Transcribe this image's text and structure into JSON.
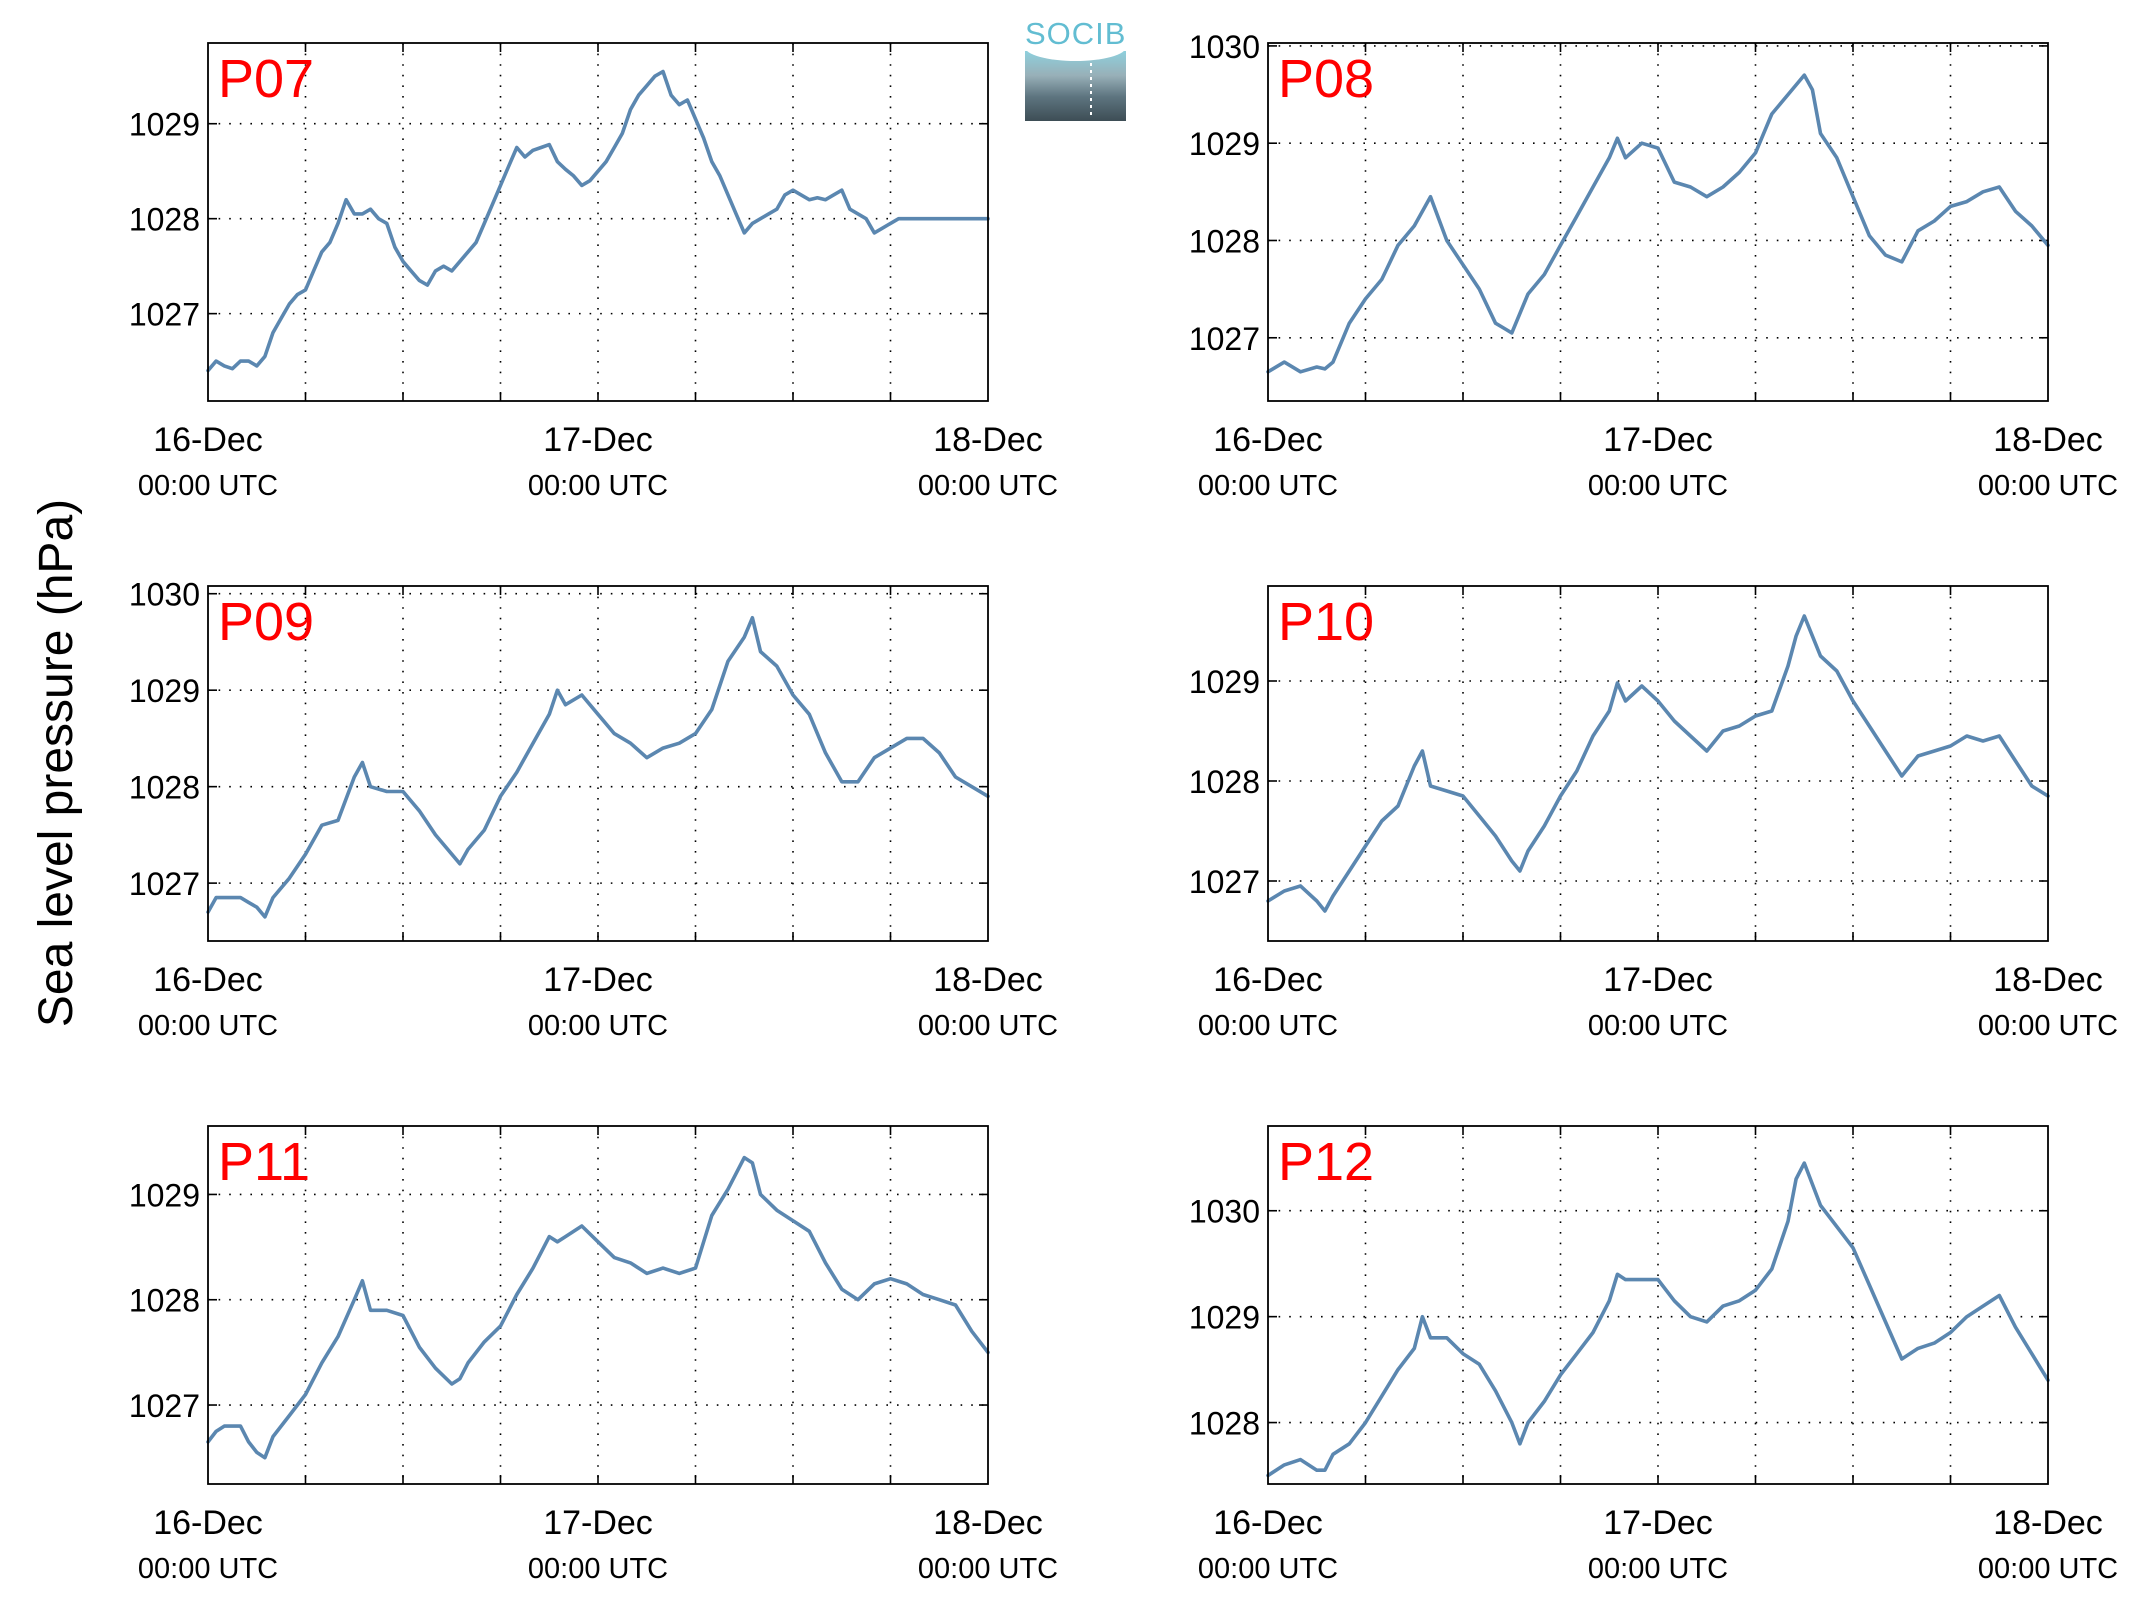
{
  "figure": {
    "ylabel": "Sea level pressure (hPa)",
    "logo_text": "SOCIB",
    "line_color": "#5b87b0",
    "station_label_color": "#ff0000"
  },
  "chart_data": [
    {
      "type": "line",
      "title": "P07",
      "xlabel": "",
      "ylabel": "",
      "x_tick_labels": [
        {
          "date": "16-Dec",
          "time": "00:00 UTC"
        },
        {
          "date": "17-Dec",
          "time": "00:00 UTC"
        },
        {
          "date": "18-Dec",
          "time": "00:00 UTC"
        }
      ],
      "xlim_hours": [
        0,
        48
      ],
      "x_grid_step_hours": 6,
      "ylim": [
        1026.08,
        1029.85
      ],
      "y_ticks": [
        1027,
        1028,
        1029
      ],
      "grid": "dotted",
      "series": [
        {
          "x_hours": [
            0,
            0.5,
            1,
            1.5,
            2,
            2.5,
            3,
            3.5,
            4,
            4.5,
            5,
            5.5,
            6,
            6.5,
            7,
            7.5,
            8,
            8.5,
            9,
            9.5,
            10,
            10.5,
            11,
            11.5,
            12,
            12.5,
            13,
            13.5,
            14,
            14.5,
            15,
            15.5,
            16,
            16.5,
            17,
            17.5,
            18,
            18.5,
            19,
            19.5,
            20,
            20.5,
            21,
            21.5,
            22,
            22.5,
            23,
            23.5,
            24,
            24.5,
            25,
            25.5,
            26,
            26.5,
            27,
            27.5,
            28,
            28.5,
            29,
            29.5,
            30,
            30.5,
            31,
            31.5,
            32,
            32.5,
            33,
            33.5,
            34,
            34.5,
            35,
            35.5,
            36,
            36.5,
            37,
            37.5,
            38,
            38.5,
            39,
            39.5,
            40,
            40.5,
            41,
            41.5,
            42,
            42.5,
            43,
            43.5,
            44,
            44.5,
            45,
            45.5,
            46,
            46.5,
            47,
            47.5,
            48
          ],
          "values": [
            1026.4,
            1026.5,
            1026.45,
            1026.42,
            1026.5,
            1026.5,
            1026.45,
            1026.55,
            1026.8,
            1026.95,
            1027.1,
            1027.2,
            1027.25,
            1027.45,
            1027.65,
            1027.75,
            1027.95,
            1028.2,
            1028.05,
            1028.05,
            1028.1,
            1028.0,
            1027.95,
            1027.7,
            1027.55,
            1027.45,
            1027.35,
            1027.3,
            1027.45,
            1027.5,
            1027.45,
            1027.55,
            1027.65,
            1027.75,
            1027.95,
            1028.15,
            1028.35,
            1028.55,
            1028.75,
            1028.65,
            1028.72,
            1028.75,
            1028.78,
            1028.6,
            1028.52,
            1028.45,
            1028.35,
            1028.4,
            1028.5,
            1028.6,
            1028.75,
            1028.9,
            1029.15,
            1029.3,
            1029.4,
            1029.5,
            1029.55,
            1029.3,
            1029.2,
            1029.25,
            1029.05,
            1028.85,
            1028.6,
            1028.45,
            1028.25,
            1028.05,
            1027.85,
            1027.95,
            1028.0,
            1028.05,
            1028.1,
            1028.25,
            1028.3,
            1028.25,
            1028.2,
            1028.22,
            1028.2,
            1028.25,
            1028.3,
            1028.1,
            1028.05,
            1028.0,
            1027.85,
            1027.9,
            1027.95,
            1028.0,
            1028.0,
            1028.0,
            1028.0,
            1028.0,
            1028.0,
            1028.0,
            1028.0,
            1028.0,
            1028.0,
            1028.0,
            1028.0
          ]
        }
      ]
    },
    {
      "type": "line",
      "title": "P08",
      "xlabel": "",
      "ylabel": "",
      "x_tick_labels": [
        {
          "date": "16-Dec",
          "time": "00:00 UTC"
        },
        {
          "date": "17-Dec",
          "time": "00:00 UTC"
        },
        {
          "date": "18-Dec",
          "time": "00:00 UTC"
        }
      ],
      "xlim_hours": [
        0,
        48
      ],
      "x_grid_step_hours": 6,
      "ylim": [
        1026.35,
        1030.03
      ],
      "y_ticks": [
        1027,
        1028,
        1029,
        1030
      ],
      "grid": "dotted",
      "series": [
        {
          "x_hours": [
            0,
            1,
            2,
            3,
            3.5,
            4,
            5,
            6,
            7,
            8,
            9,
            10,
            11,
            12,
            13,
            14,
            14.5,
            15,
            16,
            17,
            18,
            19,
            20,
            21,
            21.5,
            22,
            23,
            24,
            25,
            26,
            27,
            28,
            29,
            30,
            31,
            32,
            33,
            33.5,
            34,
            35,
            36,
            37,
            38,
            39,
            40,
            41,
            42,
            43,
            44,
            45,
            46,
            47,
            48
          ],
          "values": [
            1026.65,
            1026.75,
            1026.65,
            1026.7,
            1026.68,
            1026.75,
            1027.15,
            1027.4,
            1027.6,
            1027.95,
            1028.15,
            1028.45,
            1028.0,
            1027.75,
            1027.5,
            1027.15,
            1027.1,
            1027.05,
            1027.45,
            1027.65,
            1027.95,
            1028.25,
            1028.55,
            1028.85,
            1029.05,
            1028.85,
            1029.0,
            1028.95,
            1028.6,
            1028.55,
            1028.45,
            1028.55,
            1028.7,
            1028.9,
            1029.3,
            1029.5,
            1029.7,
            1029.55,
            1029.1,
            1028.85,
            1028.45,
            1028.05,
            1027.85,
            1027.78,
            1028.1,
            1028.2,
            1028.35,
            1028.4,
            1028.5,
            1028.55,
            1028.3,
            1028.15,
            1027.95
          ]
        }
      ]
    },
    {
      "type": "line",
      "title": "P09",
      "xlabel": "",
      "ylabel": "",
      "x_tick_labels": [
        {
          "date": "16-Dec",
          "time": "00:00 UTC"
        },
        {
          "date": "17-Dec",
          "time": "00:00 UTC"
        },
        {
          "date": "18-Dec",
          "time": "00:00 UTC"
        }
      ],
      "xlim_hours": [
        0,
        48
      ],
      "x_grid_step_hours": 6,
      "ylim": [
        1026.4,
        1030.08
      ],
      "y_ticks": [
        1027,
        1028,
        1029,
        1030
      ],
      "grid": "dotted",
      "series": [
        {
          "x_hours": [
            0,
            0.5,
            1,
            2,
            2.5,
            3,
            3.5,
            4,
            5,
            6,
            7,
            8,
            9,
            9.5,
            10,
            11,
            12,
            13,
            14,
            15,
            15.5,
            16,
            17,
            18,
            19,
            20,
            21,
            21.5,
            22,
            23,
            24,
            25,
            26,
            27,
            28,
            29,
            30,
            31,
            32,
            33,
            33.5,
            34,
            35,
            36,
            37,
            38,
            39,
            40,
            41,
            42,
            43,
            44,
            45,
            46,
            47,
            48
          ],
          "values": [
            1026.7,
            1026.85,
            1026.85,
            1026.85,
            1026.8,
            1026.75,
            1026.65,
            1026.85,
            1027.05,
            1027.3,
            1027.6,
            1027.65,
            1028.1,
            1028.25,
            1028.0,
            1027.95,
            1027.95,
            1027.75,
            1027.5,
            1027.3,
            1027.2,
            1027.35,
            1027.55,
            1027.9,
            1028.15,
            1028.45,
            1028.75,
            1029.0,
            1028.85,
            1028.95,
            1028.75,
            1028.55,
            1028.45,
            1028.3,
            1028.4,
            1028.45,
            1028.55,
            1028.8,
            1029.3,
            1029.55,
            1029.75,
            1029.4,
            1029.25,
            1028.95,
            1028.75,
            1028.35,
            1028.05,
            1028.05,
            1028.3,
            1028.4,
            1028.5,
            1028.5,
            1028.35,
            1028.1,
            1028.0,
            1027.9
          ]
        }
      ]
    },
    {
      "type": "line",
      "title": "P10",
      "xlabel": "",
      "ylabel": "",
      "x_tick_labels": [
        {
          "date": "16-Dec",
          "time": "00:00 UTC"
        },
        {
          "date": "17-Dec",
          "time": "00:00 UTC"
        },
        {
          "date": "18-Dec",
          "time": "00:00 UTC"
        }
      ],
      "xlim_hours": [
        0,
        48
      ],
      "x_grid_step_hours": 6,
      "ylim": [
        1026.4,
        1029.95
      ],
      "y_ticks": [
        1027,
        1028,
        1029
      ],
      "grid": "dotted",
      "series": [
        {
          "x_hours": [
            0,
            1,
            2,
            3,
            3.5,
            4,
            5,
            6,
            7,
            8,
            9,
            9.5,
            10,
            11,
            12,
            13,
            14,
            15,
            15.5,
            16,
            17,
            18,
            19,
            20,
            21,
            21.5,
            22,
            23,
            24,
            25,
            26,
            27,
            28,
            29,
            30,
            31,
            32,
            32.5,
            33,
            34,
            35,
            36,
            37,
            38,
            39,
            40,
            41,
            42,
            43,
            44,
            45,
            46,
            47,
            48
          ],
          "values": [
            1026.8,
            1026.9,
            1026.95,
            1026.8,
            1026.7,
            1026.85,
            1027.1,
            1027.35,
            1027.6,
            1027.75,
            1028.15,
            1028.3,
            1027.95,
            1027.9,
            1027.85,
            1027.65,
            1027.45,
            1027.2,
            1027.1,
            1027.3,
            1027.55,
            1027.85,
            1028.1,
            1028.45,
            1028.7,
            1028.98,
            1028.8,
            1028.95,
            1028.8,
            1028.6,
            1028.45,
            1028.3,
            1028.5,
            1028.55,
            1028.65,
            1028.7,
            1029.15,
            1029.45,
            1029.65,
            1029.25,
            1029.1,
            1028.8,
            1028.55,
            1028.3,
            1028.05,
            1028.25,
            1028.3,
            1028.35,
            1028.45,
            1028.4,
            1028.45,
            1028.2,
            1027.95,
            1027.85
          ]
        }
      ]
    },
    {
      "type": "line",
      "title": "P11",
      "xlabel": "",
      "ylabel": "",
      "x_tick_labels": [
        {
          "date": "16-Dec",
          "time": "00:00 UTC"
        },
        {
          "date": "17-Dec",
          "time": "00:00 UTC"
        },
        {
          "date": "18-Dec",
          "time": "00:00 UTC"
        }
      ],
      "xlim_hours": [
        0,
        48
      ],
      "x_grid_step_hours": 6,
      "ylim": [
        1026.25,
        1029.65
      ],
      "y_ticks": [
        1027,
        1028,
        1029
      ],
      "grid": "dotted",
      "series": [
        {
          "x_hours": [
            0,
            0.5,
            1,
            2,
            2.5,
            3,
            3.5,
            4,
            5,
            6,
            7,
            8,
            9,
            9.5,
            10,
            11,
            12,
            13,
            14,
            15,
            15.5,
            16,
            17,
            18,
            19,
            20,
            21,
            21.5,
            22,
            23,
            24,
            25,
            26,
            27,
            28,
            29,
            30,
            31,
            32,
            33,
            33.5,
            34,
            35,
            36,
            37,
            38,
            39,
            40,
            41,
            42,
            43,
            44,
            45,
            46,
            47,
            48
          ],
          "values": [
            1026.65,
            1026.75,
            1026.8,
            1026.8,
            1026.65,
            1026.55,
            1026.5,
            1026.7,
            1026.9,
            1027.1,
            1027.4,
            1027.65,
            1028.0,
            1028.18,
            1027.9,
            1027.9,
            1027.85,
            1027.55,
            1027.35,
            1027.2,
            1027.25,
            1027.4,
            1027.6,
            1027.75,
            1028.05,
            1028.3,
            1028.6,
            1028.55,
            1028.6,
            1028.7,
            1028.55,
            1028.4,
            1028.35,
            1028.25,
            1028.3,
            1028.25,
            1028.3,
            1028.8,
            1029.05,
            1029.35,
            1029.3,
            1029.0,
            1028.85,
            1028.75,
            1028.65,
            1028.35,
            1028.1,
            1028.0,
            1028.15,
            1028.2,
            1028.15,
            1028.05,
            1028.0,
            1027.95,
            1027.7,
            1027.5
          ]
        }
      ]
    },
    {
      "type": "line",
      "title": "P12",
      "xlabel": "",
      "ylabel": "",
      "x_tick_labels": [
        {
          "date": "16-Dec",
          "time": "00:00 UTC"
        },
        {
          "date": "17-Dec",
          "time": "00:00 UTC"
        },
        {
          "date": "18-Dec",
          "time": "00:00 UTC"
        }
      ],
      "xlim_hours": [
        0,
        48
      ],
      "x_grid_step_hours": 6,
      "ylim": [
        1027.42,
        1030.8
      ],
      "y_ticks": [
        1028,
        1029,
        1030
      ],
      "grid": "dotted",
      "series": [
        {
          "x_hours": [
            0,
            1,
            2,
            3,
            3.5,
            4,
            5,
            6,
            7,
            8,
            9,
            9.5,
            10,
            11,
            12,
            13,
            14,
            15,
            15.5,
            16,
            17,
            18,
            19,
            20,
            21,
            21.5,
            22,
            23,
            24,
            25,
            26,
            27,
            28,
            29,
            30,
            31,
            32,
            32.5,
            33,
            34,
            35,
            36,
            37,
            38,
            39,
            40,
            41,
            42,
            43,
            44,
            45,
            46,
            47,
            48
          ],
          "values": [
            1027.5,
            1027.6,
            1027.65,
            1027.55,
            1027.55,
            1027.7,
            1027.8,
            1028.0,
            1028.25,
            1028.5,
            1028.7,
            1029.0,
            1028.8,
            1028.8,
            1028.65,
            1028.55,
            1028.3,
            1028.0,
            1027.8,
            1028.0,
            1028.2,
            1028.45,
            1028.65,
            1028.85,
            1029.15,
            1029.4,
            1029.35,
            1029.35,
            1029.35,
            1029.15,
            1029.0,
            1028.95,
            1029.1,
            1029.15,
            1029.25,
            1029.45,
            1029.9,
            1030.3,
            1030.45,
            1030.05,
            1029.85,
            1029.65,
            1029.3,
            1028.95,
            1028.6,
            1028.7,
            1028.75,
            1028.85,
            1029.0,
            1029.1,
            1029.2,
            1028.9,
            1028.65,
            1028.4
          ]
        }
      ]
    }
  ]
}
